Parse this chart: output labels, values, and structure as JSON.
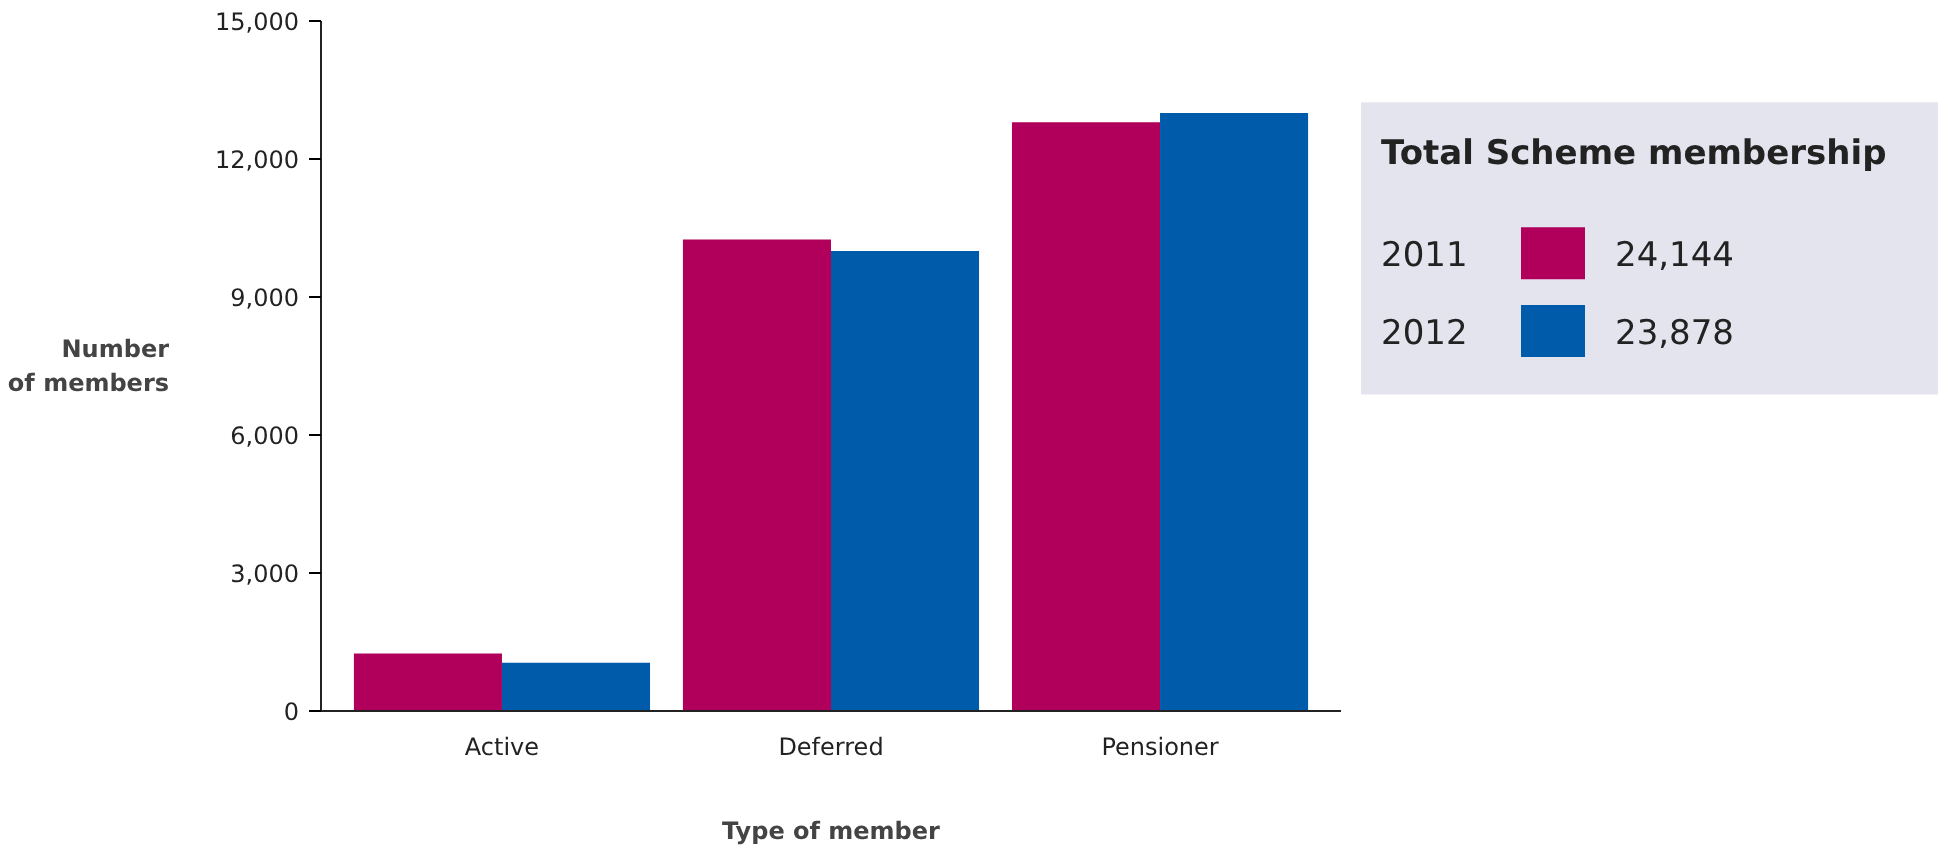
{
  "chart_data": {
    "type": "bar",
    "xlabel": "Type of member",
    "ylabel": "Number\nof members",
    "categories": [
      "Active",
      "Deferred",
      "Pensioner"
    ],
    "series": [
      {
        "name": "2011",
        "color": "#b0005c",
        "values": [
          1250,
          10250,
          12800
        ]
      },
      {
        "name": "2012",
        "color": "#005bab",
        "values": [
          1050,
          10000,
          13000
        ]
      }
    ],
    "ylim": [
      0,
      15000
    ],
    "yticks": [
      {
        "value": 0,
        "label": "0"
      },
      {
        "value": 3000,
        "label": "3,000"
      },
      {
        "value": 6000,
        "label": "6,000"
      },
      {
        "value": 9000,
        "label": "9,000"
      },
      {
        "value": 12000,
        "label": "12,000"
      },
      {
        "value": 15000,
        "label": "15,000"
      }
    ],
    "legend": "right",
    "legend_title": "Total Scheme membership",
    "annotations": [
      "24,144",
      "23,878"
    ],
    "grid": false
  }
}
